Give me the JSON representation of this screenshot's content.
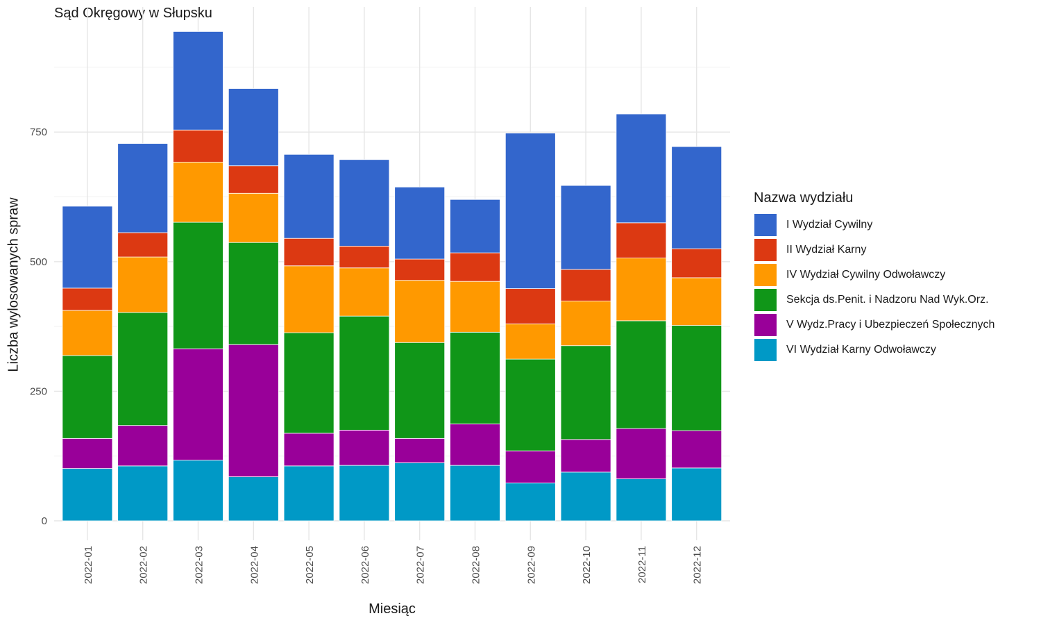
{
  "chart_data": {
    "type": "bar",
    "stacked": true,
    "title": "Sąd Okręgowy w Słupsku",
    "xlabel": "Miesiąc",
    "ylabel": "Liczba wylosowanych spraw",
    "ylim": [
      0,
      950
    ],
    "yticks": [
      0,
      250,
      500,
      750
    ],
    "grid": true,
    "legend_title": "Nazwa wydziału",
    "legend_position": "right",
    "categories": [
      "2022-01",
      "2022-02",
      "2022-03",
      "2022-04",
      "2022-05",
      "2022-06",
      "2022-07",
      "2022-08",
      "2022-09",
      "2022-10",
      "2022-11",
      "2022-12"
    ],
    "series": [
      {
        "name": "I Wydział Cywilny",
        "color": "#3366CC",
        "values": [
          158,
          172,
          190,
          149,
          162,
          167,
          139,
          103,
          300,
          162,
          210,
          197
        ]
      },
      {
        "name": "II Wydział Karny",
        "color": "#DC3912",
        "values": [
          43,
          47,
          62,
          53,
          53,
          42,
          41,
          55,
          68,
          61,
          68,
          56
        ]
      },
      {
        "name": "IV Wydział Cywilny Odwoławczy",
        "color": "#FF9900",
        "values": [
          87,
          107,
          116,
          95,
          129,
          93,
          120,
          98,
          68,
          86,
          121,
          92
        ]
      },
      {
        "name": "Sekcja ds.Penit. i Nadzoru Nad Wyk.Orz.",
        "color": "#109618",
        "values": [
          160,
          218,
          244,
          197,
          194,
          220,
          185,
          177,
          177,
          181,
          208,
          203
        ]
      },
      {
        "name": "V Wydz.Pracy i Ubezpieczeń Społecznych",
        "color": "#990099",
        "values": [
          58,
          78,
          215,
          255,
          63,
          68,
          47,
          80,
          62,
          63,
          97,
          72
        ]
      },
      {
        "name": "VI Wydział Karny Odwoławczy",
        "color": "#0099C6",
        "values": [
          101,
          106,
          117,
          85,
          106,
          107,
          112,
          107,
          73,
          94,
          81,
          102
        ]
      }
    ]
  }
}
